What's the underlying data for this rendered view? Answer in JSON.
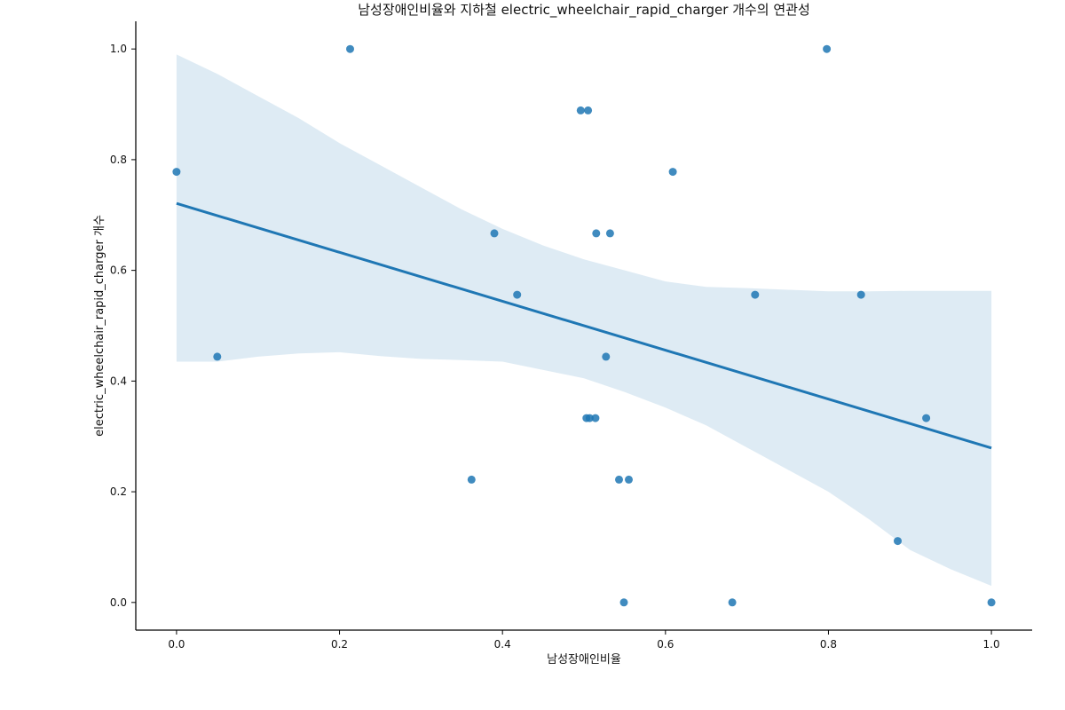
{
  "chart_data": {
    "type": "scatter",
    "title": "남성장애인비율와 지하철 electric_wheelchair_rapid_charger 개수의 연관성",
    "xlabel": "남성장애인비율",
    "ylabel": "electric_wheelchair_rapid_charger 개수",
    "xlim": [
      -0.05,
      1.05
    ],
    "ylim": [
      -0.05,
      1.05
    ],
    "xticks": [
      0.0,
      0.2,
      0.4,
      0.6,
      0.8,
      1.0
    ],
    "yticks": [
      0.0,
      0.2,
      0.4,
      0.6,
      0.8,
      1.0
    ],
    "xtick_labels": [
      "0.0",
      "0.2",
      "0.4",
      "0.6",
      "0.8",
      "1.0"
    ],
    "ytick_labels": [
      "0.0",
      "0.2",
      "0.4",
      "0.6",
      "0.8",
      "1.0"
    ],
    "grid": false,
    "color": "#1f77b4",
    "points": [
      {
        "x": 0.0,
        "y": 0.778
      },
      {
        "x": 0.05,
        "y": 0.444
      },
      {
        "x": 0.213,
        "y": 1.0
      },
      {
        "x": 0.362,
        "y": 0.222
      },
      {
        "x": 0.39,
        "y": 0.667
      },
      {
        "x": 0.418,
        "y": 0.556
      },
      {
        "x": 0.496,
        "y": 0.889
      },
      {
        "x": 0.505,
        "y": 0.889
      },
      {
        "x": 0.503,
        "y": 0.333
      },
      {
        "x": 0.507,
        "y": 0.333
      },
      {
        "x": 0.514,
        "y": 0.333
      },
      {
        "x": 0.515,
        "y": 0.667
      },
      {
        "x": 0.527,
        "y": 0.444
      },
      {
        "x": 0.532,
        "y": 0.667
      },
      {
        "x": 0.543,
        "y": 0.222
      },
      {
        "x": 0.549,
        "y": 0.0
      },
      {
        "x": 0.555,
        "y": 0.222
      },
      {
        "x": 0.609,
        "y": 0.778
      },
      {
        "x": 0.682,
        "y": 0.0
      },
      {
        "x": 0.71,
        "y": 0.556
      },
      {
        "x": 0.798,
        "y": 1.0
      },
      {
        "x": 0.84,
        "y": 0.556
      },
      {
        "x": 0.885,
        "y": 0.111
      },
      {
        "x": 0.92,
        "y": 0.333
      },
      {
        "x": 1.0,
        "y": 0.0
      }
    ],
    "regression": {
      "x": [
        0.0,
        1.0
      ],
      "y": [
        0.721,
        0.279
      ]
    },
    "confidence_band": {
      "x": [
        0.0,
        0.05,
        0.1,
        0.15,
        0.2,
        0.25,
        0.3,
        0.35,
        0.4,
        0.45,
        0.5,
        0.55,
        0.6,
        0.65,
        0.7,
        0.75,
        0.8,
        0.85,
        0.9,
        0.95,
        1.0
      ],
      "upper": [
        0.99,
        0.955,
        0.915,
        0.875,
        0.83,
        0.79,
        0.75,
        0.71,
        0.675,
        0.645,
        0.62,
        0.6,
        0.58,
        0.57,
        0.568,
        0.565,
        0.562,
        0.562,
        0.563,
        0.563,
        0.563
      ],
      "lower": [
        0.435,
        0.435,
        0.444,
        0.45,
        0.452,
        0.445,
        0.44,
        0.438,
        0.435,
        0.42,
        0.405,
        0.38,
        0.352,
        0.32,
        0.28,
        0.24,
        0.2,
        0.15,
        0.095,
        0.06,
        0.03
      ]
    }
  }
}
